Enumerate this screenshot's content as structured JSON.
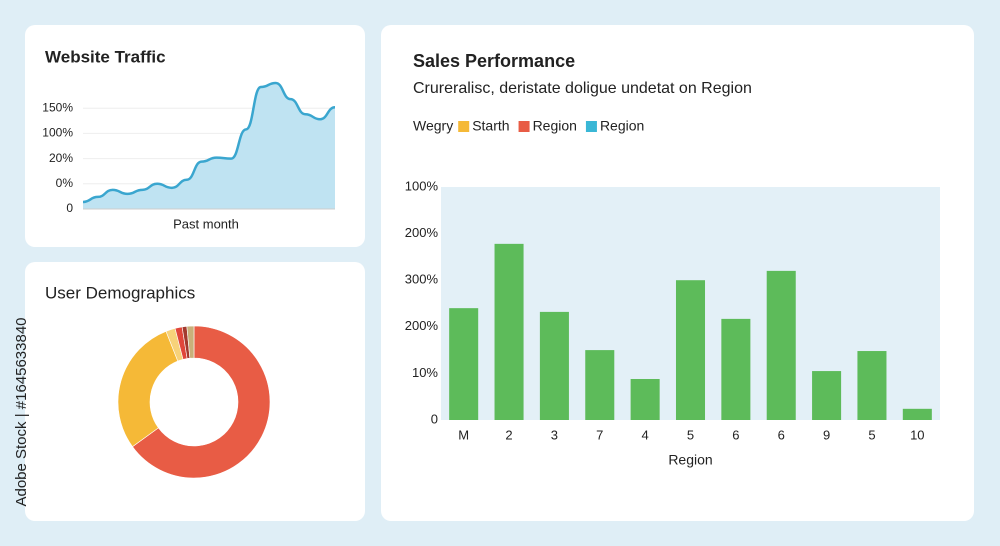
{
  "side_label": "Adobe Stock | #1645633840",
  "chart_data": [
    {
      "type": "area",
      "title": "Website Traffic",
      "x_label": "Past month",
      "y_labels": [
        "0",
        "0%",
        "20%",
        "100%",
        "150%"
      ],
      "ylim": [
        0,
        5
      ],
      "color": "#3aa6cf",
      "fill": "#bfe3f2",
      "grid": true,
      "values": [
        0.28,
        0.48,
        0.76,
        0.6,
        0.76,
        1.0,
        0.84,
        1.16,
        1.88,
        2.04,
        2.0,
        3.16,
        4.84,
        5.0,
        4.36,
        3.76,
        3.56,
        4.04
      ]
    },
    {
      "type": "pie",
      "title": "User Demographics",
      "donut": true,
      "values": [
        65,
        29,
        2,
        1.5,
        1,
        1.5
      ],
      "colors": [
        "#e85c45",
        "#f5b937",
        "#f7d27a",
        "#e0463a",
        "#a33a2e",
        "#c9b07a"
      ]
    },
    {
      "type": "bar",
      "title": "Sales Performance",
      "subtitle": "Crureralisc, deristate doligue undetat on Region",
      "legend_title": "Wegry",
      "legend": [
        {
          "name": "Starth",
          "color": "#f5b937"
        },
        {
          "name": "Region",
          "color": "#e85c45"
        },
        {
          "name": "Region",
          "color": "#3ab7d6"
        }
      ],
      "x_label": "Region",
      "color": "#5dbb5a",
      "categories": [
        "M",
        "2",
        "3",
        "7",
        "4",
        "5",
        "6",
        "6",
        "9",
        "5",
        "10"
      ],
      "values": [
        2.4,
        3.78,
        2.32,
        1.5,
        0.88,
        3.0,
        2.17,
        3.2,
        1.05,
        1.48,
        0.24
      ],
      "y_labels": [
        "0",
        "10%",
        "200%",
        "300%",
        "200%",
        "100%"
      ],
      "ylim": [
        0,
        5
      ]
    }
  ]
}
